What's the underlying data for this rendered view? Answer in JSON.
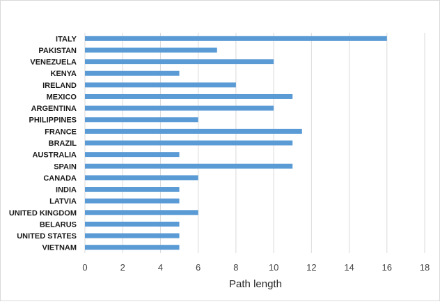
{
  "chart_data": {
    "type": "bar",
    "orientation": "horizontal",
    "categories": [
      "ITALY",
      "PAKISTAN",
      "VENEZUELA",
      "KENYA",
      "IRELAND",
      "MEXICO",
      "ARGENTINA",
      "PHILIPPINES",
      "FRANCE",
      "BRAZIL",
      "AUSTRALIA",
      "SPAIN",
      "CANADA",
      "INDIA",
      "LATVIA",
      "UNITED KINGDOM",
      "BELARUS",
      "UNITED STATES",
      "VIETNAM"
    ],
    "values": [
      16,
      7,
      10,
      5,
      8,
      11,
      10,
      6,
      11.5,
      11,
      5,
      11,
      6,
      5,
      5,
      6,
      5,
      5,
      5
    ],
    "xlabel": "Path length",
    "xlim": [
      0,
      18
    ],
    "xticks": [
      0,
      2,
      4,
      6,
      8,
      10,
      12,
      14,
      16,
      18
    ],
    "grid": "vertical",
    "bar_color": "#5b9bd5",
    "grid_color": "#d9d9d9"
  }
}
